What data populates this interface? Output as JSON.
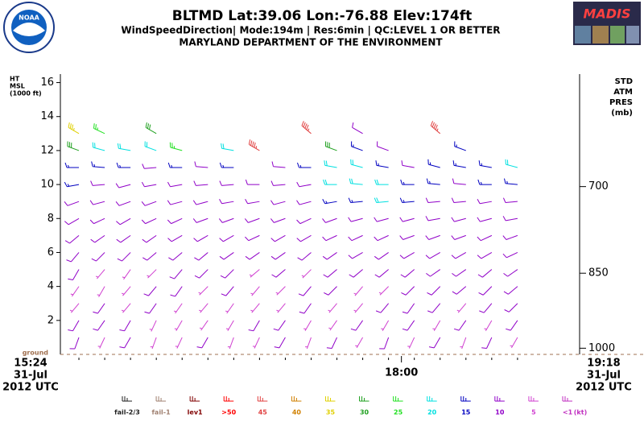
{
  "chart_data": {
    "type": "wind_barbs",
    "title": "BLTMD  Lat:39.06 Lon:-76.88 Elev:174ft",
    "subtitle": "WindSpeedDirection| Mode:194m | Res:6min |  QC:LEVEL 1 OR BETTER",
    "source": "MARYLAND DEPARTMENT OF THE ENVIRONMENT",
    "logos": {
      "left": "NOAA",
      "right": "MADIS"
    },
    "y_label": [
      "HT",
      "MSL",
      "(1000 ft)"
    ],
    "y2_label": [
      "STD",
      "ATM",
      "PRES",
      "(mb)"
    ],
    "ground_label": "ground",
    "date": "31-Jul",
    "zone": "2012 UTC",
    "ylim": [
      0,
      16.5
    ],
    "yticks": [
      2,
      4,
      6,
      8,
      10,
      12,
      14,
      16
    ],
    "y2ticks": [
      700,
      850,
      1000
    ],
    "xlim": [
      "15:24",
      "19:18"
    ],
    "xticks": [
      "18:00"
    ],
    "heights": [
      1,
      2,
      3,
      4,
      5,
      6,
      7,
      8,
      9,
      10,
      11,
      12,
      13
    ],
    "columns": [
      {
        "time": "15:30",
        "speeds": [
          8,
          9,
          7,
          6,
          8,
          9,
          10,
          10,
          12,
          15,
          15,
          30,
          35
        ],
        "directions": [
          200,
          210,
          220,
          215,
          210,
          220,
          230,
          240,
          250,
          260,
          270,
          290,
          300
        ]
      },
      {
        "time": "15:42",
        "speeds": [
          7,
          8,
          8,
          7,
          6,
          8,
          9,
          10,
          11,
          12,
          14,
          20,
          25
        ],
        "directions": [
          205,
          215,
          215,
          210,
          220,
          225,
          235,
          245,
          255,
          265,
          275,
          285,
          295
        ]
      },
      {
        "time": "15:54",
        "speeds": [
          8,
          8,
          7,
          6,
          7,
          8,
          9,
          10,
          10,
          11,
          15,
          20,
          null
        ],
        "directions": [
          210,
          210,
          220,
          220,
          215,
          225,
          235,
          240,
          250,
          255,
          270,
          280,
          null
        ]
      },
      {
        "time": "16:06",
        "speeds": [
          6,
          7,
          8,
          8,
          7,
          8,
          8,
          9,
          10,
          10,
          12,
          22,
          30
        ],
        "directions": [
          200,
          205,
          215,
          220,
          225,
          230,
          235,
          245,
          250,
          260,
          265,
          290,
          300
        ]
      },
      {
        "time": "16:18",
        "speeds": [
          7,
          6,
          7,
          8,
          9,
          8,
          9,
          10,
          10,
          12,
          15,
          25,
          null
        ],
        "directions": [
          205,
          210,
          215,
          215,
          220,
          230,
          240,
          245,
          255,
          260,
          270,
          285,
          null
        ]
      },
      {
        "time": "16:30",
        "speeds": [
          8,
          7,
          6,
          7,
          8,
          9,
          9,
          10,
          11,
          10,
          12,
          null,
          null
        ],
        "directions": [
          210,
          215,
          220,
          225,
          225,
          230,
          240,
          250,
          255,
          265,
          275,
          null,
          null
        ]
      },
      {
        "time": "16:42",
        "speeds": [
          6,
          7,
          7,
          8,
          8,
          9,
          10,
          9,
          10,
          11,
          13,
          18,
          null
        ],
        "directions": [
          200,
          210,
          215,
          220,
          225,
          235,
          240,
          250,
          260,
          265,
          270,
          280,
          null
        ]
      },
      {
        "time": "16:54",
        "speeds": [
          7,
          8,
          7,
          6,
          7,
          8,
          9,
          10,
          10,
          12,
          null,
          45,
          null
        ],
        "directions": [
          205,
          210,
          220,
          220,
          230,
          235,
          245,
          250,
          260,
          270,
          null,
          300,
          null
        ]
      },
      {
        "time": "17:06",
        "speeds": [
          8,
          8,
          7,
          7,
          8,
          8,
          9,
          9,
          10,
          10,
          12,
          null,
          null
        ],
        "directions": [
          210,
          215,
          220,
          225,
          230,
          235,
          240,
          250,
          255,
          265,
          275,
          null,
          null
        ]
      },
      {
        "time": "17:18",
        "speeds": [
          7,
          7,
          8,
          8,
          7,
          9,
          9,
          10,
          11,
          12,
          15,
          null,
          45
        ],
        "directions": [
          200,
          210,
          215,
          220,
          225,
          230,
          240,
          245,
          255,
          260,
          270,
          null,
          310
        ]
      },
      {
        "time": "17:30",
        "speeds": [
          8,
          7,
          7,
          8,
          8,
          9,
          10,
          11,
          13,
          20,
          22,
          28,
          null
        ],
        "directions": [
          205,
          215,
          220,
          225,
          230,
          235,
          245,
          250,
          260,
          270,
          280,
          290,
          null
        ]
      },
      {
        "time": "17:42",
        "speeds": [
          7,
          8,
          7,
          7,
          8,
          9,
          10,
          12,
          15,
          20,
          18,
          15,
          10
        ],
        "directions": [
          210,
          215,
          220,
          220,
          230,
          240,
          245,
          255,
          265,
          275,
          285,
          290,
          300
        ]
      },
      {
        "time": "17:54",
        "speeds": [
          8,
          7,
          8,
          7,
          8,
          9,
          10,
          12,
          18,
          20,
          14,
          12,
          null
        ],
        "directions": [
          200,
          210,
          220,
          225,
          230,
          235,
          245,
          255,
          265,
          270,
          280,
          290,
          null
        ]
      },
      {
        "time": "18:06",
        "speeds": [
          7,
          8,
          8,
          8,
          9,
          9,
          10,
          12,
          15,
          15,
          12,
          null,
          null
        ],
        "directions": [
          205,
          215,
          215,
          225,
          230,
          240,
          250,
          255,
          265,
          270,
          280,
          null,
          null
        ]
      },
      {
        "time": "18:18",
        "speeds": [
          8,
          7,
          8,
          8,
          9,
          10,
          10,
          11,
          12,
          15,
          13,
          null,
          45
        ],
        "directions": [
          210,
          210,
          220,
          225,
          235,
          240,
          250,
          260,
          265,
          275,
          285,
          null,
          310
        ]
      },
      {
        "time": "18:30",
        "speeds": [
          7,
          8,
          7,
          8,
          9,
          9,
          10,
          10,
          11,
          12,
          15,
          15,
          null
        ],
        "directions": [
          200,
          215,
          220,
          230,
          235,
          240,
          250,
          255,
          265,
          275,
          280,
          290,
          null
        ]
      },
      {
        "time": "18:42",
        "speeds": [
          8,
          7,
          8,
          8,
          9,
          9,
          10,
          11,
          12,
          14,
          15,
          null,
          null
        ],
        "directions": [
          205,
          210,
          220,
          225,
          230,
          240,
          245,
          255,
          260,
          270,
          280,
          null,
          null
        ]
      },
      {
        "time": "18:54",
        "speeds": [
          7,
          8,
          8,
          9,
          9,
          10,
          10,
          10,
          12,
          15,
          20,
          null,
          null
        ],
        "directions": [
          210,
          215,
          225,
          230,
          235,
          245,
          250,
          260,
          265,
          275,
          285,
          null,
          null
        ]
      }
    ],
    "legend": [
      {
        "name": "fail-2/3",
        "color": "#202020"
      },
      {
        "name": "fail-1",
        "color": "#a08070"
      },
      {
        "name": "lev1",
        "color": "#800000"
      },
      {
        "name": ">50",
        "color": "#ff0000"
      },
      {
        "name": "45",
        "color": "#e04040"
      },
      {
        "name": "40",
        "color": "#d08000"
      },
      {
        "name": "35",
        "color": "#e0d000"
      },
      {
        "name": "30",
        "color": "#20a020"
      },
      {
        "name": "25",
        "color": "#20e020"
      },
      {
        "name": "20",
        "color": "#00e0e0"
      },
      {
        "name": "15",
        "color": "#0000c0"
      },
      {
        "name": "10",
        "color": "#9000c8"
      },
      {
        "name": "5",
        "color": "#d040d0"
      },
      {
        "name": "<1",
        "color": "#c030c0"
      }
    ],
    "legend_unit": "(kt)"
  }
}
